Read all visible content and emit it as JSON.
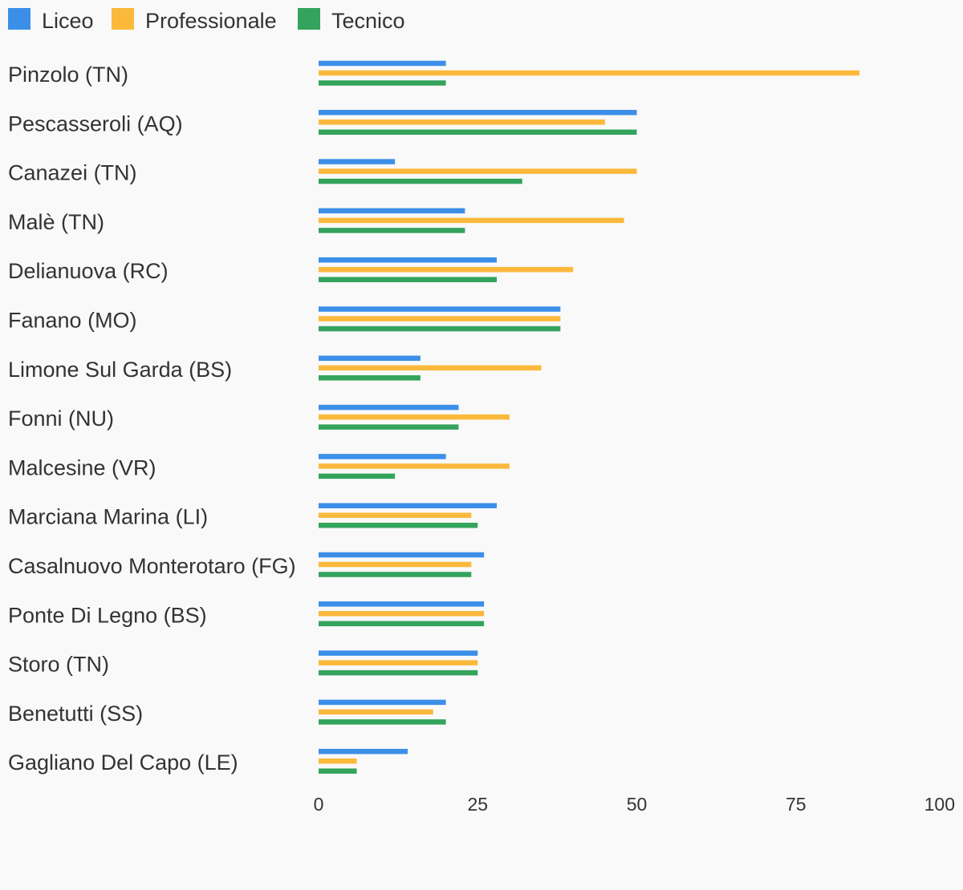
{
  "chart_data": {
    "type": "bar",
    "orientation": "horizontal",
    "categories": [
      "Pinzolo (TN)",
      "Pescasseroli (AQ)",
      "Canazei (TN)",
      "Malè (TN)",
      "Delianuova (RC)",
      "Fanano (MO)",
      "Limone Sul Garda (BS)",
      "Fonni (NU)",
      "Malcesine (VR)",
      "Marciana Marina (LI)",
      "Casalnuovo Monterotaro (FG)",
      "Ponte Di Legno (BS)",
      "Storo (TN)",
      "Benetutti (SS)",
      "Gagliano Del Capo (LE)"
    ],
    "series": [
      {
        "name": "Liceo",
        "color": "#3b8fe8",
        "values": [
          20,
          50,
          12,
          23,
          28,
          38,
          16,
          22,
          20,
          28,
          26,
          26,
          25,
          20,
          14
        ]
      },
      {
        "name": "Professionale",
        "color": "#fbb93c",
        "values": [
          85,
          45,
          50,
          48,
          40,
          38,
          35,
          30,
          30,
          24,
          24,
          26,
          25,
          18,
          6
        ]
      },
      {
        "name": "Tecnico",
        "color": "#34a35c",
        "values": [
          20,
          50,
          32,
          23,
          28,
          38,
          16,
          22,
          12,
          25,
          24,
          26,
          25,
          20,
          6
        ]
      }
    ],
    "xlim": [
      0,
      100
    ],
    "xticks": [
      0,
      25,
      50,
      75,
      100
    ],
    "title": "",
    "xlabel": "",
    "ylabel": "",
    "legend_position": "top-left",
    "grid": false
  }
}
